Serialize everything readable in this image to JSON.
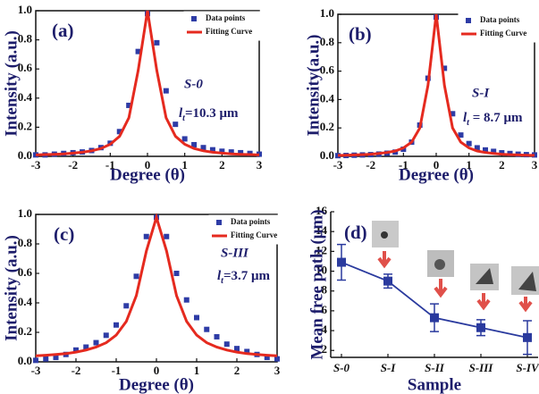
{
  "chart_data": [
    {
      "type": "line",
      "panel_label": "(a)",
      "annotation": "S-0",
      "length_label": {
        "symbol": "l",
        "subscript": "t",
        "text": "=10.3 μm"
      },
      "x_label": "Degree (θ)",
      "y_label": "Intensity (a.u.)",
      "x": [
        -3,
        -2.75,
        -2.5,
        -2.25,
        -2,
        -1.75,
        -1.5,
        -1.25,
        -1,
        -0.75,
        -0.5,
        -0.25,
        0,
        0.25,
        0.5,
        0.75,
        1,
        1.25,
        1.5,
        1.75,
        2,
        2.25,
        2.5,
        2.75,
        3
      ],
      "series": [
        {
          "name": "Data points",
          "color": "#2e3ca6",
          "style": "marker",
          "values": [
            0.01,
            0.01,
            0.015,
            0.02,
            0.025,
            0.03,
            0.04,
            0.06,
            0.09,
            0.17,
            0.35,
            0.72,
            0.98,
            0.78,
            0.45,
            0.22,
            0.12,
            0.08,
            0.06,
            0.045,
            0.035,
            0.03,
            0.025,
            0.02,
            0.015
          ]
        },
        {
          "name": "Fitting Curve",
          "color": "#e52a1f",
          "style": "line",
          "values": [
            0.01,
            0.012,
            0.014,
            0.017,
            0.022,
            0.028,
            0.038,
            0.054,
            0.083,
            0.138,
            0.265,
            0.59,
            1,
            0.59,
            0.265,
            0.138,
            0.083,
            0.054,
            0.038,
            0.028,
            0.022,
            0.017,
            0.014,
            0.012,
            0.01
          ]
        }
      ],
      "xlim": [
        -3,
        3
      ],
      "xticks": [
        -3,
        -2,
        -1,
        0,
        1,
        2,
        3
      ],
      "ylim": [
        0,
        1
      ],
      "yticks": [
        {
          "value": 0,
          "label": "0.0"
        },
        0.2,
        0.4,
        0.6,
        0.8,
        {
          "value": 1,
          "label": "1.0"
        }
      ],
      "legend": "upper right"
    },
    {
      "type": "line",
      "panel_label": "(b)",
      "annotation": "S-I",
      "length_label": {
        "symbol": "l",
        "subscript": "t",
        "text": " = 8.7 μm"
      },
      "x_label": "Degree (θ)",
      "y_label": "Intensity(a.u.)",
      "x": [
        -3,
        -2.75,
        -2.5,
        -2.25,
        -2,
        -1.75,
        -1.5,
        -1.25,
        -1,
        -0.75,
        -0.5,
        -0.25,
        0,
        0.25,
        0.5,
        0.75,
        1,
        1.25,
        1.5,
        1.75,
        2,
        2.25,
        2.5,
        2.75,
        3
      ],
      "series": [
        {
          "name": "Data points",
          "color": "#2e3ca6",
          "style": "marker",
          "values": [
            0.005,
            0.006,
            0.008,
            0.01,
            0.012,
            0.016,
            0.022,
            0.03,
            0.05,
            0.1,
            0.22,
            0.55,
            0.98,
            0.62,
            0.3,
            0.15,
            0.09,
            0.06,
            0.045,
            0.035,
            0.025,
            0.02,
            0.015,
            0.012,
            0.01
          ]
        },
        {
          "name": "Fitting Curve",
          "color": "#e52a1f",
          "style": "line",
          "values": [
            0.007,
            0.008,
            0.01,
            0.012,
            0.015,
            0.02,
            0.027,
            0.038,
            0.059,
            0.1,
            0.2,
            0.5,
            1,
            0.5,
            0.2,
            0.1,
            0.059,
            0.038,
            0.027,
            0.02,
            0.015,
            0.012,
            0.01,
            0.008,
            0.007
          ]
        }
      ],
      "xlim": [
        -3,
        3
      ],
      "xticks": [
        -3,
        -2,
        -1,
        0,
        1,
        2,
        3
      ],
      "ylim": [
        0,
        1
      ],
      "yticks": [
        {
          "value": 0,
          "label": "0.0"
        },
        0.2,
        0.4,
        0.6,
        0.8,
        {
          "value": 1,
          "label": "1.0"
        }
      ],
      "legend": "upper right"
    },
    {
      "type": "line",
      "panel_label": "(c)",
      "annotation": "S-III",
      "length_label": {
        "symbol": "l",
        "subscript": "t",
        "text": "=3.7 μm"
      },
      "x_label": "Degree (θ)",
      "y_label": "Intensity (a.u.)",
      "x": [
        -3,
        -2.75,
        -2.5,
        -2.25,
        -2,
        -1.75,
        -1.5,
        -1.25,
        -1,
        -0.75,
        -0.5,
        -0.25,
        0,
        0.25,
        0.5,
        0.75,
        1,
        1.25,
        1.5,
        1.75,
        2,
        2.25,
        2.5,
        2.75,
        3
      ],
      "series": [
        {
          "name": "Data points",
          "color": "#2e3ca6",
          "style": "marker",
          "values": [
            0.01,
            0.02,
            0.03,
            0.05,
            0.08,
            0.1,
            0.13,
            0.18,
            0.25,
            0.38,
            0.58,
            0.85,
            0.98,
            0.85,
            0.6,
            0.42,
            0.3,
            0.22,
            0.17,
            0.12,
            0.09,
            0.07,
            0.05,
            0.03,
            0.02
          ]
        },
        {
          "name": "Fitting Curve",
          "color": "#e52a1f",
          "style": "line",
          "values": [
            0.041,
            0.045,
            0.05,
            0.056,
            0.066,
            0.08,
            0.1,
            0.13,
            0.181,
            0.274,
            0.449,
            0.753,
            0.98,
            0.753,
            0.449,
            0.274,
            0.181,
            0.13,
            0.1,
            0.08,
            0.066,
            0.056,
            0.05,
            0.045,
            0.041
          ]
        }
      ],
      "xlim": [
        -3,
        3
      ],
      "xticks": [
        -3,
        -2,
        -1,
        0,
        1,
        2,
        3
      ],
      "ylim": [
        0,
        1
      ],
      "yticks": [
        {
          "value": 0,
          "label": "0.0"
        },
        0.2,
        0.4,
        0.6,
        0.8,
        {
          "value": 1,
          "label": "1.0"
        }
      ],
      "legend": "upper right"
    },
    {
      "type": "errorline",
      "panel_label": "(d)",
      "x_label": "Sample",
      "y_label": "Mean free path (μm)",
      "categories": [
        "S-0",
        "S-I",
        "S-II",
        "S-III",
        "S-IV"
      ],
      "series": [
        {
          "color": "#2a3a9e",
          "values": [
            10.9,
            9.0,
            5.3,
            4.3,
            3.3
          ],
          "errors": [
            1.8,
            0.7,
            1.4,
            0.8,
            1.7
          ]
        }
      ],
      "ylim": [
        1.3,
        16
      ],
      "yticks": [
        2,
        4,
        6,
        8,
        10,
        12,
        14,
        16
      ]
    }
  ]
}
